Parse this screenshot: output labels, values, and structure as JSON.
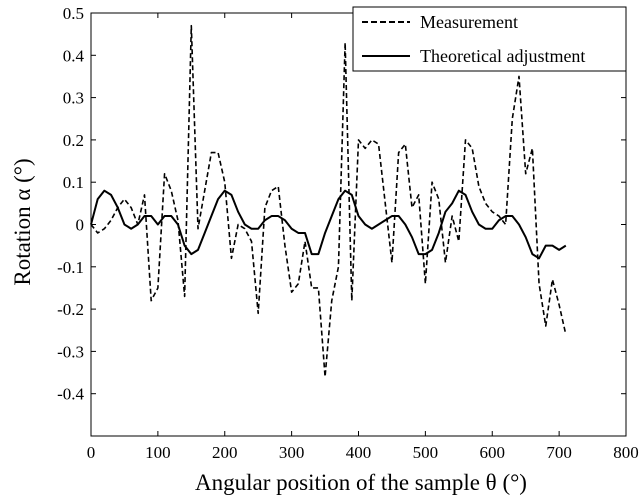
{
  "chart_data": {
    "type": "line",
    "xlabel": "Angular position of the sample θ (°)",
    "ylabel": "Rotation α (°)",
    "xlim": [
      0,
      800
    ],
    "ylim": [
      -0.5,
      0.5
    ],
    "xticks": [
      0,
      100,
      200,
      300,
      400,
      500,
      600,
      700,
      800
    ],
    "xtick_labels": [
      "0",
      "100",
      "200",
      "300",
      "400",
      "500",
      "600",
      "700",
      "800"
    ],
    "yticks": [
      -0.4,
      -0.3,
      -0.2,
      -0.1,
      0,
      0.1,
      0.2,
      0.3,
      0.4,
      0.5
    ],
    "ytick_labels": [
      "-0.4",
      "-0.3",
      "-0.2",
      "-0.1",
      "0",
      "0.1",
      "0.2",
      "0.3",
      "0.4",
      "0.5"
    ],
    "grid": false,
    "legend_position": "top-right",
    "series": [
      {
        "name": "Measurement",
        "style": "dashed",
        "color": "#000000",
        "x": [
          0,
          10,
          20,
          30,
          40,
          50,
          60,
          70,
          80,
          90,
          100,
          110,
          120,
          130,
          140,
          150,
          160,
          170,
          180,
          190,
          200,
          210,
          220,
          230,
          240,
          250,
          260,
          270,
          280,
          290,
          300,
          310,
          320,
          330,
          340,
          350,
          360,
          370,
          380,
          390,
          400,
          410,
          420,
          430,
          440,
          450,
          460,
          470,
          480,
          490,
          500,
          510,
          520,
          530,
          540,
          550,
          560,
          570,
          580,
          590,
          600,
          610,
          620,
          630,
          640,
          650,
          660,
          670,
          680,
          690,
          700,
          710
        ],
        "y": [
          0.0,
          -0.02,
          -0.01,
          0.01,
          0.04,
          0.06,
          0.04,
          0.0,
          0.07,
          -0.18,
          -0.15,
          0.12,
          0.08,
          0.01,
          -0.17,
          0.47,
          -0.01,
          0.08,
          0.17,
          0.17,
          0.1,
          -0.08,
          0.0,
          -0.01,
          -0.04,
          -0.21,
          0.04,
          0.08,
          0.09,
          -0.05,
          -0.16,
          -0.14,
          -0.04,
          -0.15,
          -0.15,
          -0.36,
          -0.18,
          -0.1,
          0.43,
          -0.18,
          0.2,
          0.18,
          0.2,
          0.19,
          0.05,
          -0.09,
          0.17,
          0.19,
          0.04,
          0.07,
          -0.14,
          0.1,
          0.06,
          -0.09,
          0.02,
          -0.04,
          0.2,
          0.18,
          0.09,
          0.05,
          0.03,
          0.02,
          0.0,
          0.25,
          0.35,
          0.12,
          0.18,
          -0.14,
          -0.24,
          -0.13,
          -0.19,
          -0.26
        ]
      },
      {
        "name": "Theoretical adjustment",
        "style": "solid",
        "color": "#000000",
        "x": [
          0,
          10,
          20,
          30,
          40,
          50,
          60,
          70,
          80,
          90,
          100,
          110,
          120,
          130,
          140,
          150,
          160,
          170,
          180,
          190,
          200,
          210,
          220,
          230,
          240,
          250,
          260,
          270,
          280,
          290,
          300,
          310,
          320,
          330,
          340,
          350,
          360,
          370,
          380,
          390,
          400,
          410,
          420,
          430,
          440,
          450,
          460,
          470,
          480,
          490,
          500,
          510,
          520,
          530,
          540,
          550,
          560,
          570,
          580,
          590,
          600,
          610,
          620,
          630,
          640,
          650,
          660,
          670,
          680,
          690,
          700,
          710
        ],
        "y": [
          0.0,
          0.06,
          0.08,
          0.07,
          0.04,
          0.0,
          -0.01,
          0.0,
          0.02,
          0.02,
          0.0,
          0.02,
          0.02,
          0.0,
          -0.05,
          -0.07,
          -0.06,
          -0.02,
          0.02,
          0.06,
          0.08,
          0.07,
          0.03,
          0.0,
          -0.01,
          -0.01,
          0.01,
          0.02,
          0.02,
          0.01,
          -0.01,
          -0.02,
          -0.02,
          -0.07,
          -0.07,
          -0.02,
          0.02,
          0.06,
          0.08,
          0.07,
          0.02,
          0.0,
          -0.01,
          0.0,
          0.01,
          0.02,
          0.02,
          0.0,
          -0.03,
          -0.07,
          -0.07,
          -0.06,
          -0.02,
          0.03,
          0.05,
          0.08,
          0.07,
          0.03,
          0.0,
          -0.01,
          -0.01,
          0.01,
          0.02,
          0.02,
          0.0,
          -0.03,
          -0.07,
          -0.08,
          -0.05,
          -0.05,
          -0.06,
          -0.05
        ]
      }
    ]
  }
}
